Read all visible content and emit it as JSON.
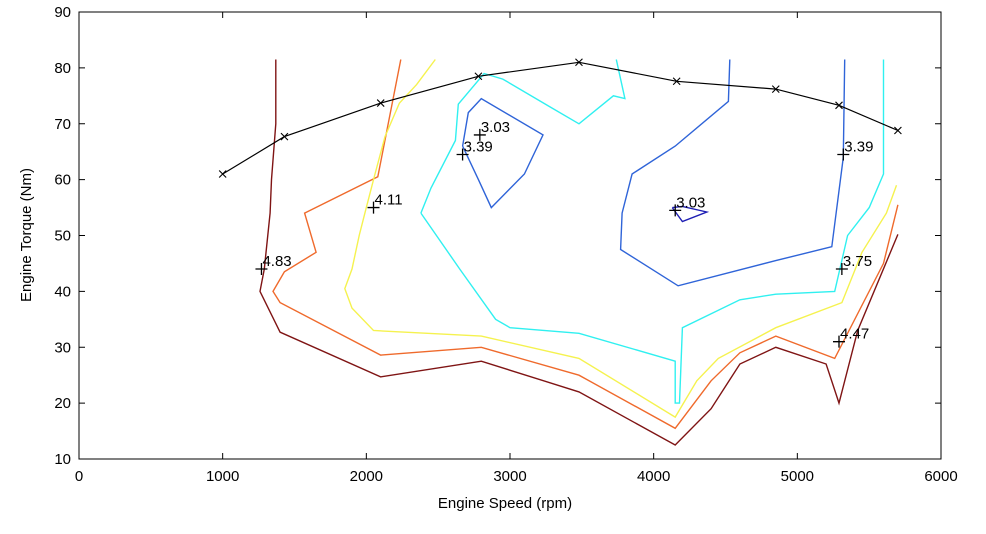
{
  "chart_data": {
    "type": "line",
    "title": "",
    "xlabel": "Engine Speed (rpm)",
    "ylabel": "Engine Torque (Nm)",
    "xlim": [
      0,
      6000
    ],
    "ylim": [
      10,
      90
    ],
    "xticks": [
      0,
      1000,
      2000,
      3000,
      4000,
      5000,
      6000
    ],
    "yticks": [
      10,
      20,
      30,
      40,
      50,
      60,
      70,
      80,
      90
    ],
    "grid": false,
    "legend": "none",
    "boundary_curve": {
      "color": "#000000",
      "marker": "x",
      "points": [
        [
          1000,
          61
        ],
        [
          1430,
          67.7
        ],
        [
          2100,
          73.7
        ],
        [
          2780,
          78.5
        ],
        [
          3480,
          81
        ],
        [
          4160,
          77.6
        ],
        [
          4850,
          76.2
        ],
        [
          5290,
          73.3
        ],
        [
          5700,
          68.8
        ]
      ]
    },
    "contours": [
      {
        "level": 4.83,
        "color": "#7f1414",
        "segments": [
          [
            [
              1370,
              81.5
            ],
            [
              1370,
              70
            ],
            [
              1340,
              60
            ],
            [
              1330,
              54
            ],
            [
              1290,
              44
            ],
            [
              1260,
              40
            ],
            [
              1400,
              32.7
            ],
            [
              2100,
              24.7
            ],
            [
              2800,
              27.5
            ],
            [
              3480,
              22
            ],
            [
              4150,
              12.5
            ],
            [
              4400,
              19
            ],
            [
              4600,
              27
            ],
            [
              4850,
              30
            ],
            [
              5200,
              27
            ],
            [
              5290,
              20
            ],
            [
              5420,
              33
            ],
            [
              5700,
              50.2
            ]
          ]
        ]
      },
      {
        "level": 4.47,
        "color": "#ef6a2c",
        "segments": [
          [
            [
              2240,
              81.5
            ],
            [
              2080,
              60.5
            ],
            [
              1570,
              54
            ],
            [
              1650,
              47
            ],
            [
              1430,
              43.5
            ],
            [
              1350,
              40
            ],
            [
              1400,
              38
            ],
            [
              2100,
              28.6
            ],
            [
              2800,
              30
            ],
            [
              3480,
              25
            ],
            [
              4150,
              15.5
            ],
            [
              4400,
              24
            ],
            [
              4600,
              29
            ],
            [
              4850,
              32
            ],
            [
              5260,
              28
            ],
            [
              5600,
              45
            ],
            [
              5700,
              55.5
            ]
          ]
        ]
      },
      {
        "level": 4.11,
        "color": "#f5f24f",
        "segments": [
          [
            [
              2480,
              81.5
            ],
            [
              2350,
              77
            ],
            [
              2230,
              73.7
            ],
            [
              2130,
              67.7
            ],
            [
              2060,
              61
            ],
            [
              2000,
              55
            ],
            [
              1950,
              50
            ],
            [
              1900,
              44
            ],
            [
              1850,
              40.5
            ],
            [
              1900,
              37
            ],
            [
              2050,
              33
            ],
            [
              2800,
              32
            ],
            [
              3480,
              28
            ],
            [
              4150,
              17.5
            ],
            [
              4300,
              24
            ],
            [
              4450,
              28
            ],
            [
              4850,
              33.5
            ],
            [
              5310,
              38
            ],
            [
              5450,
              47
            ],
            [
              5620,
              54
            ],
            [
              5690,
              59
            ]
          ]
        ]
      },
      {
        "level": 3.75,
        "color": "#30f0f0",
        "segments": [
          [
            [
              2380,
              54
            ],
            [
              2450,
              58.5
            ],
            [
              2620,
              67
            ],
            [
              2640,
              73.5
            ],
            [
              2820,
              79
            ],
            [
              2950,
              78
            ],
            [
              3280,
              73
            ],
            [
              3480,
              70
            ],
            [
              3720,
              75
            ],
            [
              3800,
              74.5
            ],
            [
              3740,
              81.5
            ]
          ],
          [
            [
              2380,
              54
            ],
            [
              2650,
              44
            ],
            [
              2900,
              35
            ],
            [
              3000,
              33.5
            ],
            [
              3480,
              32.5
            ],
            [
              4150,
              27.5
            ],
            [
              4150,
              20
            ],
            [
              4180,
              20
            ],
            [
              4200,
              33.5
            ],
            [
              4600,
              38.5
            ],
            [
              4850,
              39.5
            ],
            [
              5260,
              40
            ],
            [
              5350,
              50
            ],
            [
              5500,
              55
            ],
            [
              5600,
              61
            ],
            [
              5600,
              81.5
            ]
          ]
        ]
      },
      {
        "level": 3.39,
        "color": "#2f64d8",
        "segments": [
          [
            [
              4530,
              81.5
            ],
            [
              4520,
              74
            ],
            [
              4150,
              66
            ],
            [
              3850,
              61
            ],
            [
              3780,
              54
            ],
            [
              3770,
              47.5
            ],
            [
              4170,
              41
            ],
            [
              4850,
              45.5
            ],
            [
              5240,
              48
            ],
            [
              5320,
              64
            ],
            [
              5330,
              81.5
            ]
          ],
          [
            [
              2670,
              66
            ],
            [
              2710,
              72
            ],
            [
              2800,
              74.5
            ],
            [
              3230,
              68
            ],
            [
              3100,
              61
            ],
            [
              2870,
              55
            ],
            [
              2780,
              60
            ],
            [
              2670,
              66
            ]
          ]
        ]
      },
      {
        "level": 3.03,
        "color": "#1e1eb4",
        "segments": [
          [
            [
              4130,
              55
            ],
            [
              4200,
              52.5
            ],
            [
              4370,
              54.2
            ],
            [
              4200,
              55.2
            ],
            [
              4130,
              55
            ]
          ]
        ]
      }
    ],
    "contour_labels": [
      {
        "text": "4.83",
        "x": 1270,
        "y": 44
      },
      {
        "text": "4.11",
        "x": 2050,
        "y": 55
      },
      {
        "text": "3.39",
        "x": 2670,
        "y": 64.5
      },
      {
        "text": "3.03",
        "x": 2790,
        "y": 68
      },
      {
        "text": "3.03",
        "x": 4150,
        "y": 54.5
      },
      {
        "text": "3.39",
        "x": 5320,
        "y": 64.5
      },
      {
        "text": "3.75",
        "x": 5310,
        "y": 44
      },
      {
        "text": "4.47",
        "x": 5290,
        "y": 31
      }
    ]
  }
}
